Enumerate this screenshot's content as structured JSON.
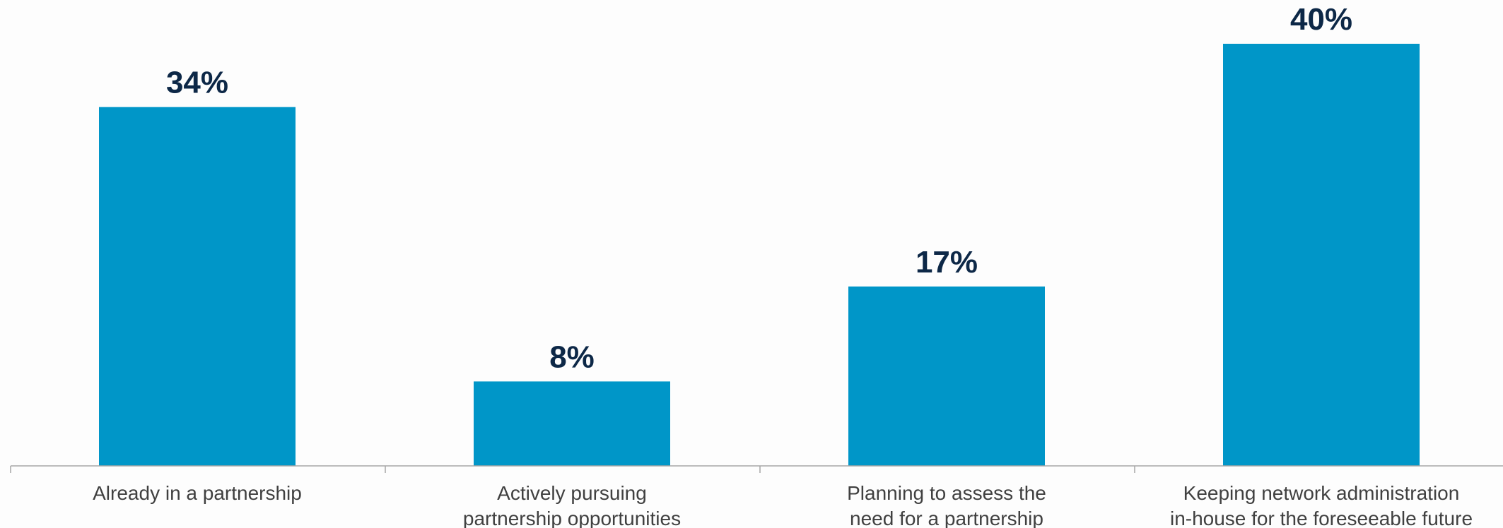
{
  "chart_data": {
    "type": "bar",
    "categories": [
      [
        "Already in a partnership"
      ],
      [
        "Actively pursuing",
        "partnership opportunities"
      ],
      [
        "Planning to assess the",
        "need for a partnership"
      ],
      [
        "Keeping network administration",
        "in-house for the foreseeable future"
      ]
    ],
    "values": [
      34,
      8,
      17,
      40
    ],
    "value_labels": [
      "34%",
      "8%",
      "17%",
      "40%"
    ],
    "title": "",
    "xlabel": "",
    "ylabel": "",
    "ylim": [
      0,
      40
    ],
    "grid": false,
    "legend": "none",
    "colors": {
      "bar": "#0096c8",
      "value_text": "#0d2847",
      "category_text": "#404040",
      "axis": "#a6a6a6",
      "background": "#fdfdfd"
    }
  }
}
